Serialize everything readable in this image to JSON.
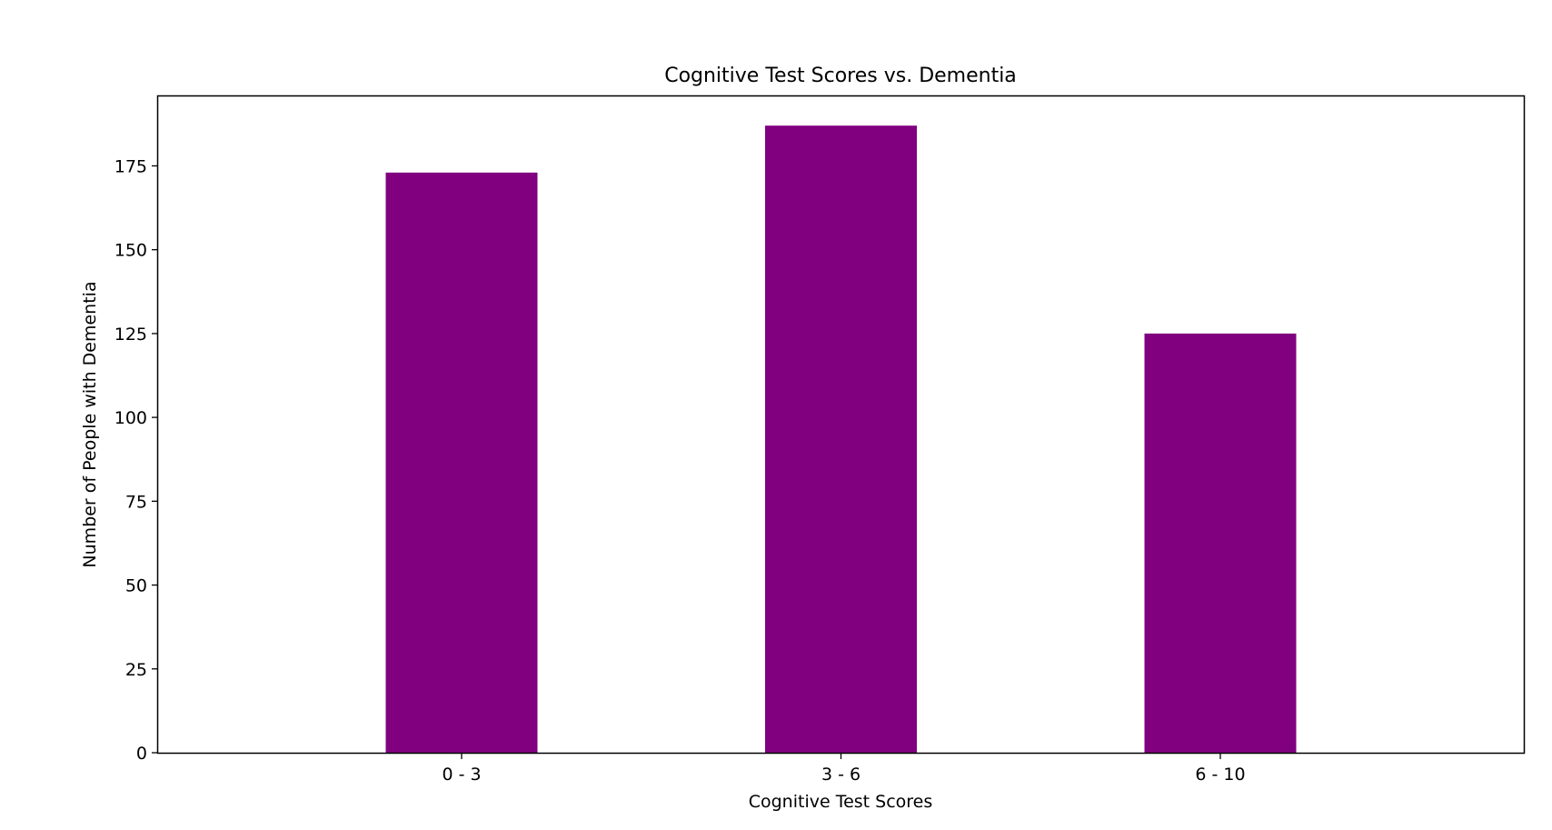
{
  "chart_data": {
    "type": "bar",
    "title": "Cognitive Test Scores vs. Dementia",
    "xlabel": "Cognitive Test Scores",
    "ylabel": "Number of People with Dementia",
    "categories": [
      "0 - 3",
      "3 - 6",
      "6 - 10"
    ],
    "values": [
      173,
      187,
      125
    ],
    "ylim": [
      0,
      196
    ],
    "yticks": [
      0,
      25,
      50,
      75,
      100,
      125,
      150,
      175
    ],
    "grid": false,
    "legend": "none",
    "bar_color": "#800080"
  }
}
